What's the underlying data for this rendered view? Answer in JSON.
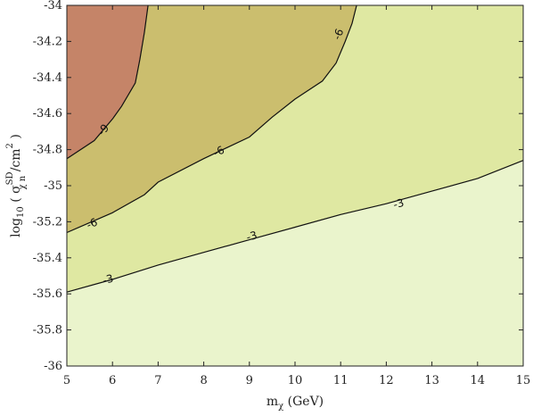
{
  "chart_data": {
    "type": "contour",
    "xlim": [
      5,
      15
    ],
    "ylim": [
      -36,
      -34
    ],
    "x_ticks": [
      "5",
      "6",
      "7",
      "8",
      "9",
      "10",
      "11",
      "12",
      "13",
      "14",
      "15"
    ],
    "y_ticks": [
      "-34",
      "-34.2",
      "-34.4",
      "-34.6",
      "-34.8",
      "-35",
      "-35.2",
      "-35.4",
      "-35.6",
      "-35.8",
      "-36"
    ],
    "x_tick_values": [
      5,
      6,
      7,
      8,
      9,
      10,
      11,
      12,
      13,
      14,
      15
    ],
    "y_tick_values": [
      -34,
      -34.2,
      -34.4,
      -34.6,
      -34.8,
      -35,
      -35.2,
      -35.4,
      -35.6,
      -35.8,
      -36
    ],
    "xlabel": {
      "main": "m",
      "sub": "χ",
      "rest": " (GeV)"
    },
    "ylabel": {
      "pre": "log",
      "sub": "10",
      "mid": " ( σ",
      "sup": "SD",
      "sub2": "χ n",
      "tail": " /cm",
      "sup2": "2",
      "end": " )"
    },
    "regions": [
      {
        "name": "below -9",
        "color": "#c58468"
      },
      {
        "name": "-9 to -6",
        "color": "#cbbe6e"
      },
      {
        "name": "-6 to -3",
        "color": "#dfe8a2"
      },
      {
        "name": "above -3",
        "color": "#eaf4cc"
      }
    ],
    "contours": [
      {
        "level": "-3",
        "points": [
          [
            5,
            -35.59
          ],
          [
            6,
            -35.52
          ],
          [
            7,
            -35.44
          ],
          [
            8,
            -35.37
          ],
          [
            9,
            -35.3
          ],
          [
            10,
            -35.23
          ],
          [
            11,
            -35.16
          ],
          [
            12,
            -35.1
          ],
          [
            13,
            -35.03
          ],
          [
            14,
            -34.96
          ],
          [
            15,
            -34.86
          ]
        ]
      },
      {
        "level": "-6",
        "points": [
          [
            5,
            -35.26
          ],
          [
            6,
            -35.15
          ],
          [
            6.7,
            -35.05
          ],
          [
            7,
            -34.98
          ],
          [
            8,
            -34.85
          ],
          [
            9,
            -34.73
          ],
          [
            9.5,
            -34.62
          ],
          [
            10,
            -34.52
          ],
          [
            10.6,
            -34.42
          ],
          [
            10.9,
            -34.32
          ],
          [
            11.1,
            -34.2
          ],
          [
            11.25,
            -34.1
          ],
          [
            11.35,
            -34
          ]
        ]
      },
      {
        "level": "-9",
        "points": [
          [
            5,
            -34.85
          ],
          [
            5.6,
            -34.75
          ],
          [
            6,
            -34.63
          ],
          [
            6.2,
            -34.56
          ],
          [
            6.5,
            -34.43
          ],
          [
            6.6,
            -34.3
          ],
          [
            6.7,
            -34.15
          ],
          [
            6.78,
            -34
          ]
        ]
      }
    ],
    "contour_labels": [
      {
        "text": "-3",
        "x": 12.27,
        "y": -35.1
      },
      {
        "text": "-3",
        "x": 9.05,
        "y": -35.28
      },
      {
        "text": "-3",
        "x": 5.9,
        "y": -35.52
      },
      {
        "text": "-6",
        "x": 10.95,
        "y": -34.16
      },
      {
        "text": "-6",
        "x": 8.33,
        "y": -34.81
      },
      {
        "text": "-6",
        "x": 5.55,
        "y": -35.21
      },
      {
        "text": "-9",
        "x": 5.8,
        "y": -34.69
      }
    ]
  }
}
